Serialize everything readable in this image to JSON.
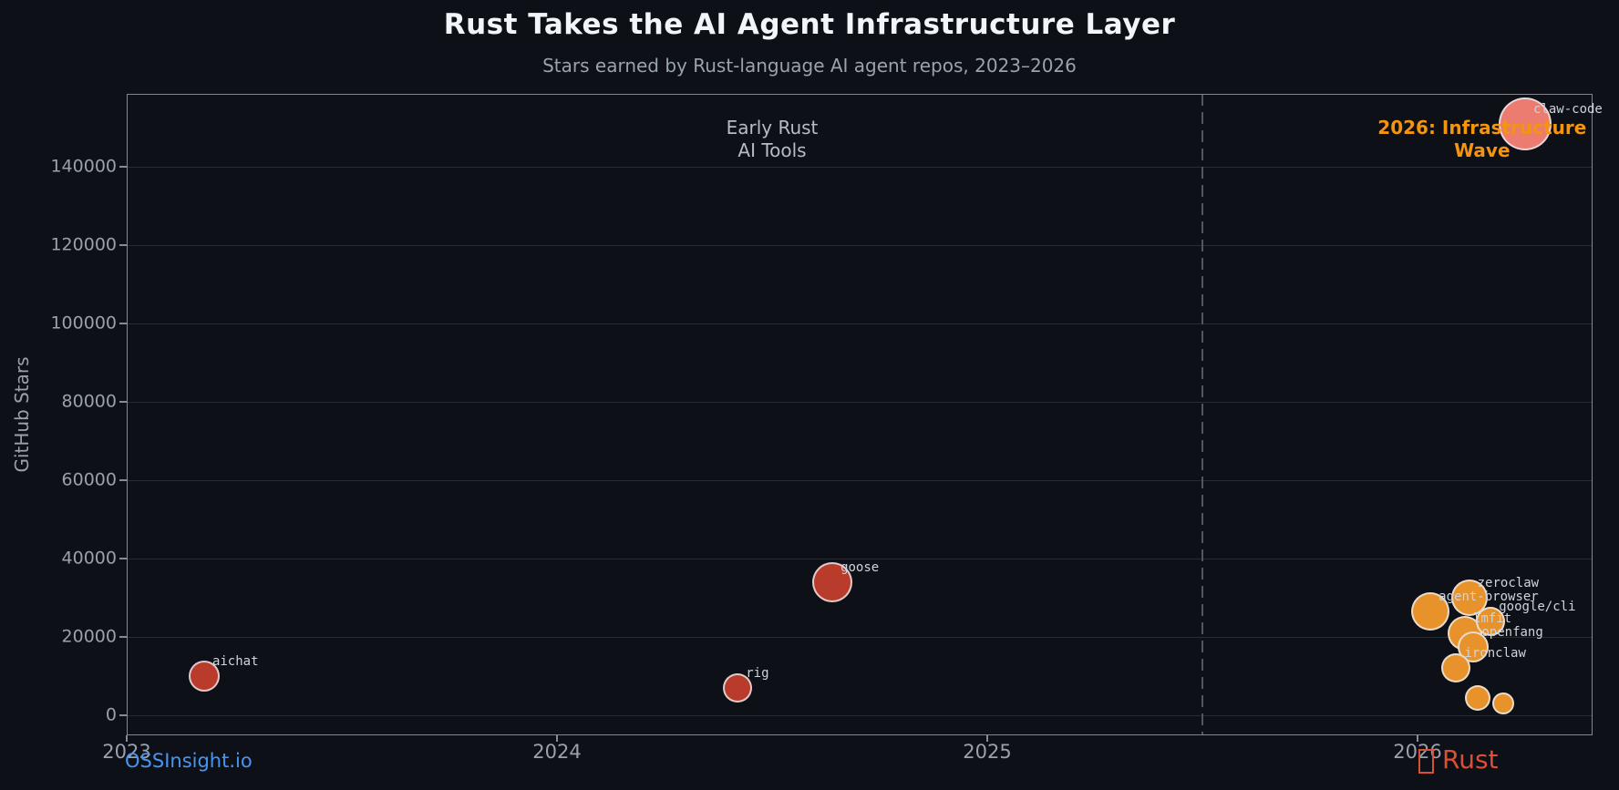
{
  "chart_data": {
    "type": "scatter",
    "title": "Rust Takes the AI Agent Infrastructure Layer",
    "subtitle": "Stars earned by Rust-language AI agent repos, 2023–2026",
    "ylabel": "GitHub Stars",
    "xlabel": "",
    "x_ticks": [
      "2023",
      "2024",
      "2025",
      "2026"
    ],
    "y_ticks": [
      0,
      20000,
      40000,
      60000,
      80000,
      100000,
      120000,
      140000
    ],
    "xlim": [
      2023,
      2026.4
    ],
    "ylim": [
      -5100,
      158600
    ],
    "grid": "horizontal-only",
    "legend": "none",
    "vline_x": 2025.5,
    "annotations": [
      {
        "lines": [
          "Early Rust",
          "AI Tools"
        ],
        "x": 2024.5,
        "y": 147000,
        "color": "#b4bcc4",
        "bold": false
      },
      {
        "lines": [
          "2026: Infrastructure",
          "Wave"
        ],
        "x": 2026.15,
        "y": 147000,
        "color": "#f5940e",
        "bold": true
      }
    ],
    "bubbles": [
      {
        "label": "aichat",
        "x": 2023.18,
        "y": 10000,
        "r": 17,
        "color": "#b93b2b"
      },
      {
        "label": "rig",
        "x": 2024.42,
        "y": 7000,
        "r": 16,
        "color": "#b93b2b"
      },
      {
        "label": "goose",
        "x": 2024.64,
        "y": 34000,
        "r": 22,
        "color": "#b93b2b"
      },
      {
        "label": "agent-browser",
        "x": 2026.03,
        "y": 26500,
        "r": 21,
        "color": "#e8922c"
      },
      {
        "label": "zeroclaw",
        "x": 2026.12,
        "y": 30000,
        "r": 20,
        "color": "#e8922c"
      },
      {
        "label": "lmfit",
        "x": 2026.11,
        "y": 21000,
        "r": 19,
        "color": "#e8922c"
      },
      {
        "label": "google/cli",
        "x": 2026.17,
        "y": 24000,
        "r": 16,
        "color": "#e8922c"
      },
      {
        "label": "openfang",
        "x": 2026.13,
        "y": 17500,
        "r": 17,
        "color": "#e8922c"
      },
      {
        "label": "ironclaw",
        "x": 2026.09,
        "y": 12000,
        "r": 16,
        "color": "#e8922c"
      },
      {
        "label": "",
        "x": 2026.14,
        "y": 4500,
        "r": 14,
        "color": "#e8922c"
      },
      {
        "label": "",
        "x": 2026.2,
        "y": 3000,
        "r": 12,
        "color": "#e8922c"
      },
      {
        "label": "claw-code",
        "x": 2026.25,
        "y": 151000,
        "r": 29,
        "color": "#ec7b70"
      }
    ],
    "footer_left": "OSSInsight.io",
    "footer_right_label": "Rust",
    "footer_right_icon": "crab",
    "colors": {
      "background": "#0d1117",
      "red_2023_2024": "#b93b2b",
      "orange_2026": "#e8922c",
      "salmon_top": "#ec7b70",
      "accent_orange_text": "#f5940e",
      "link_blue": "#4795f2",
      "rust_red": "#da4f35"
    }
  }
}
